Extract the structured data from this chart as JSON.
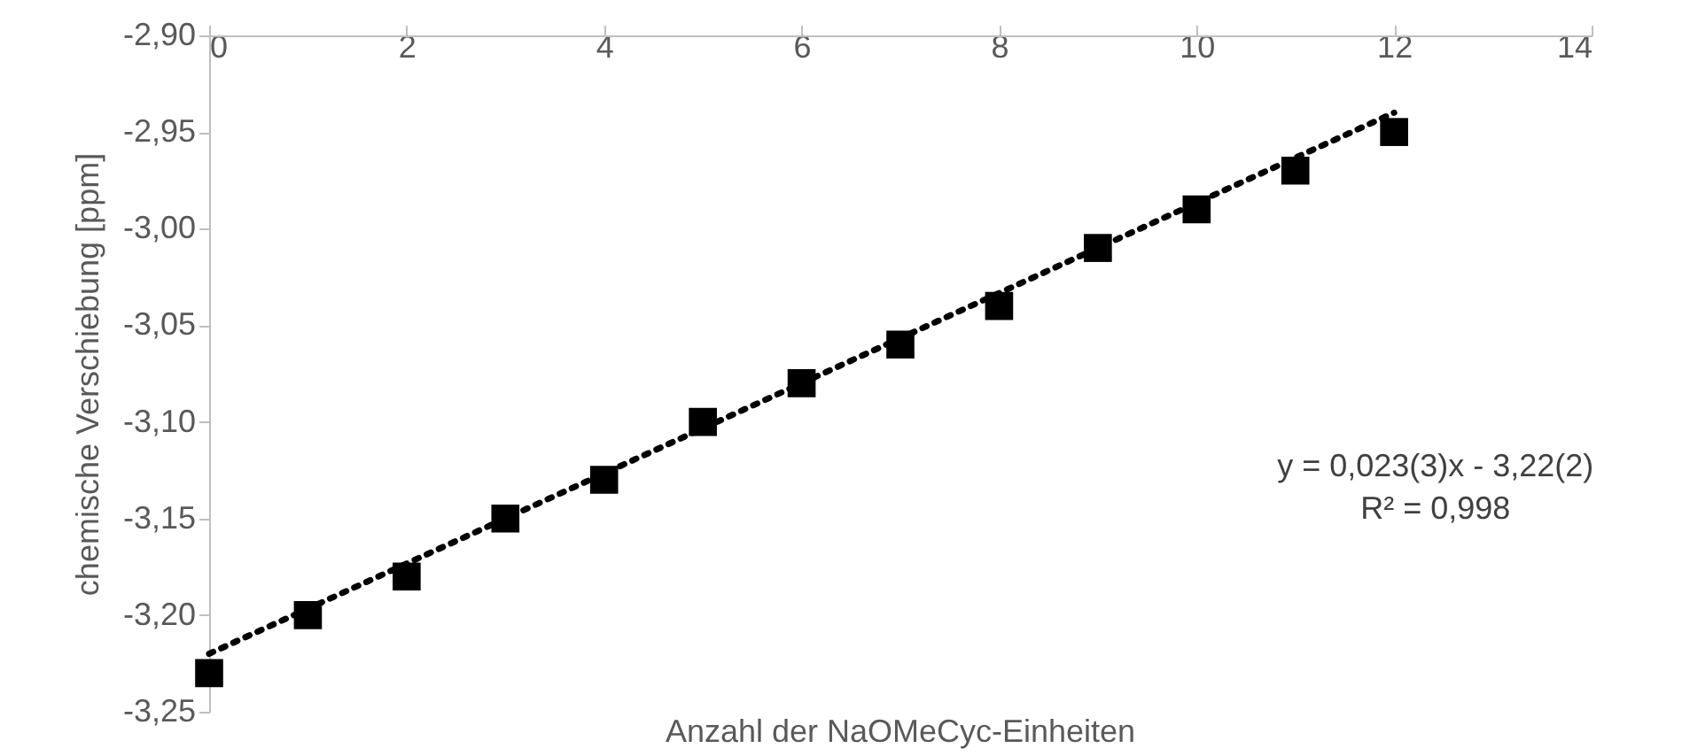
{
  "chart_data": {
    "type": "scatter",
    "xlabel": "Anzahl der NaOMeCyc-Einheiten",
    "ylabel": "chemische Verschiebung [ppm]",
    "x": [
      0,
      1,
      2,
      3,
      4,
      5,
      6,
      7,
      8,
      9,
      10,
      11,
      12
    ],
    "series": [
      {
        "color": "#000000",
        "values": [
          -3.23,
          -3.2,
          -3.18,
          -3.15,
          -3.13,
          -3.1,
          -3.08,
          -3.06,
          -3.04,
          -3.01,
          -2.99,
          -2.97,
          -2.95
        ],
        "marker": "square"
      },
      {
        "type": "line",
        "color": "#000000",
        "x": [
          0,
          12
        ],
        "values": [
          -3.22,
          -2.94
        ],
        "line_style": "dotted",
        "marker": "none"
      }
    ],
    "xlim": [
      0,
      14
    ],
    "xticks": [
      0,
      2,
      4,
      6,
      8,
      10,
      12,
      14
    ],
    "ylim": [
      -3.25,
      -2.9
    ],
    "yticks": [
      {
        "value": -3.25,
        "label": "-3,25"
      },
      {
        "value": -3.2,
        "label": "-3,20"
      },
      {
        "value": -3.15,
        "label": "-3,15"
      },
      {
        "value": -3.1,
        "label": "-3,10"
      },
      {
        "value": -3.05,
        "label": "-3,05"
      },
      {
        "value": -3.0,
        "label": "-3,00"
      },
      {
        "value": -2.95,
        "label": "-2,95"
      },
      {
        "value": -2.9,
        "label": "-2,90"
      }
    ],
    "annotations": [
      "y = 0,023(3)x - 3,22(2)",
      "R² = 0,998"
    ],
    "grid": false
  }
}
